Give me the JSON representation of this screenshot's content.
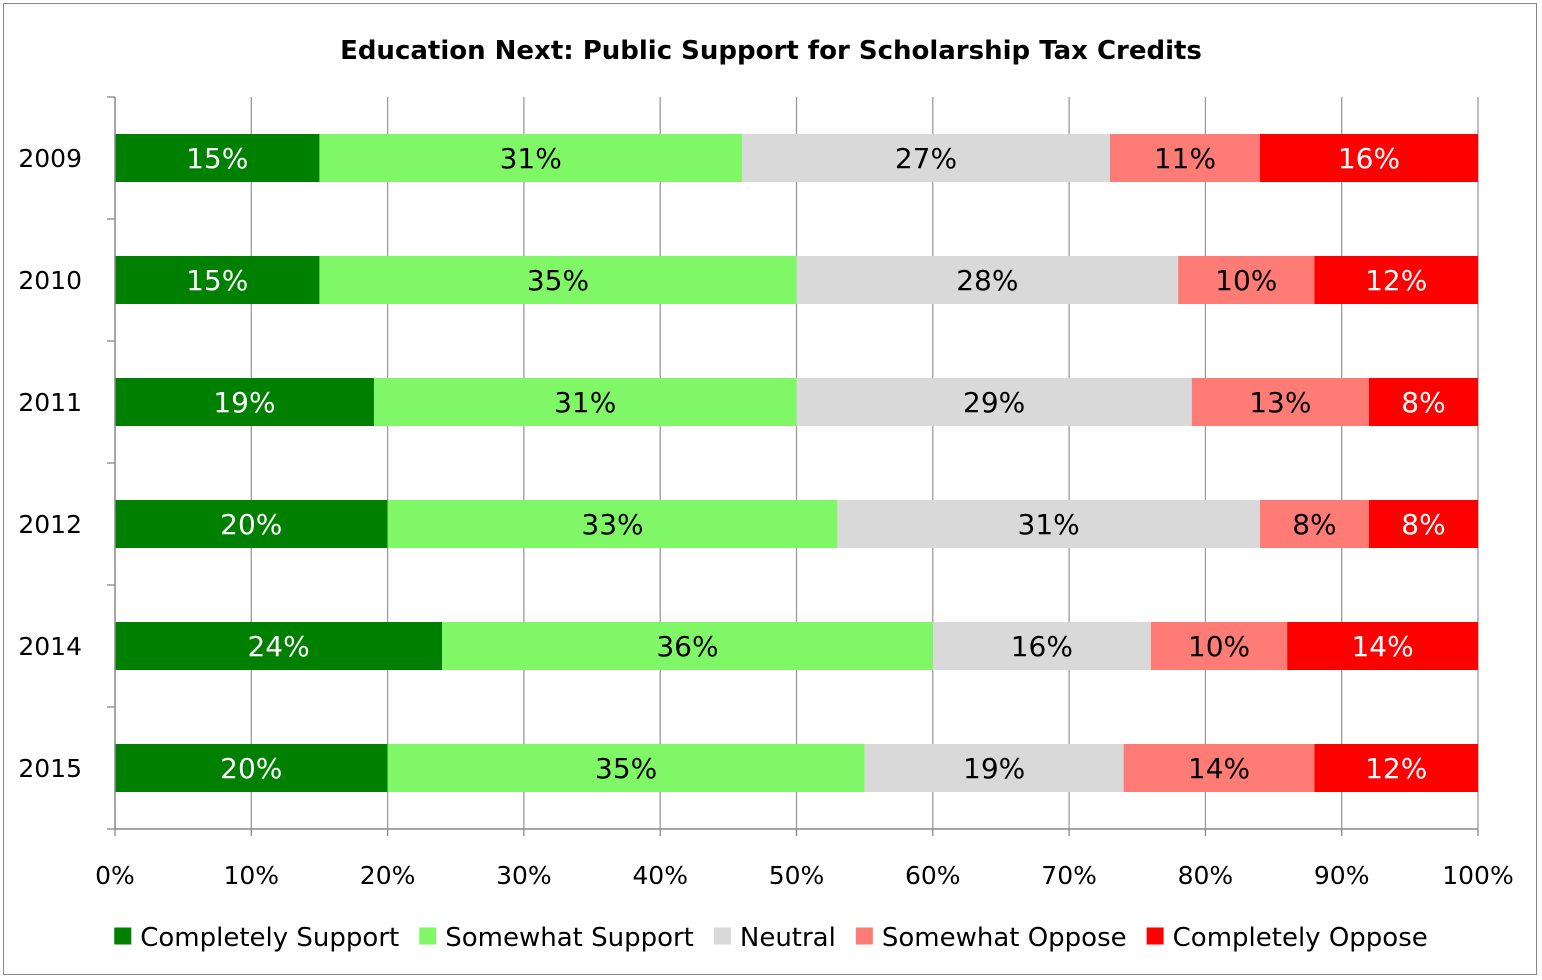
{
  "chart_data": {
    "type": "bar",
    "orientation": "horizontal",
    "stacked": true,
    "title": "Education Next: Public Support for Scholarship Tax Credits",
    "categories": [
      "2009",
      "2010",
      "2011",
      "2012",
      "2014",
      "2015"
    ],
    "series": [
      {
        "name": "Completely Support",
        "color": "#008000",
        "label_color": "#ffffff",
        "values": [
          15,
          15,
          19,
          20,
          24,
          20
        ],
        "labels": [
          "15%",
          "15%",
          "19%",
          "20%",
          "24%",
          "20%"
        ]
      },
      {
        "name": "Somewhat Support",
        "color": "#80f767",
        "label_color": "#000000",
        "values": [
          31,
          35,
          31,
          33,
          36,
          35
        ],
        "labels": [
          "31%",
          "35%",
          "31%",
          "33%",
          "36%",
          "35%"
        ]
      },
      {
        "name": "Neutral",
        "color": "#d9d9d9",
        "label_color": "#000000",
        "values": [
          27,
          28,
          29,
          31,
          16,
          19
        ],
        "labels": [
          "27%",
          "28%",
          "29%",
          "31%",
          "16%",
          "19%"
        ]
      },
      {
        "name": "Somewhat Oppose",
        "color": "#ff7b75",
        "label_color": "#000000",
        "values": [
          11,
          10,
          13,
          8,
          10,
          14
        ],
        "labels": [
          "11%",
          "10%",
          "13%",
          "8%",
          "10%",
          "14%"
        ]
      },
      {
        "name": "Completely Oppose",
        "color": "#ff0000",
        "label_color": "#ffffff",
        "values": [
          16,
          12,
          8,
          8,
          14,
          12
        ],
        "labels": [
          "16%",
          "12%",
          "8%",
          "8%",
          "14%",
          "12%"
        ]
      }
    ],
    "xlim": [
      0,
      100
    ],
    "xticks": [
      "0%",
      "10%",
      "20%",
      "30%",
      "40%",
      "50%",
      "60%",
      "70%",
      "80%",
      "90%",
      "100%"
    ],
    "xlabel": "",
    "ylabel": "",
    "grid": true,
    "legend_position": "bottom"
  }
}
